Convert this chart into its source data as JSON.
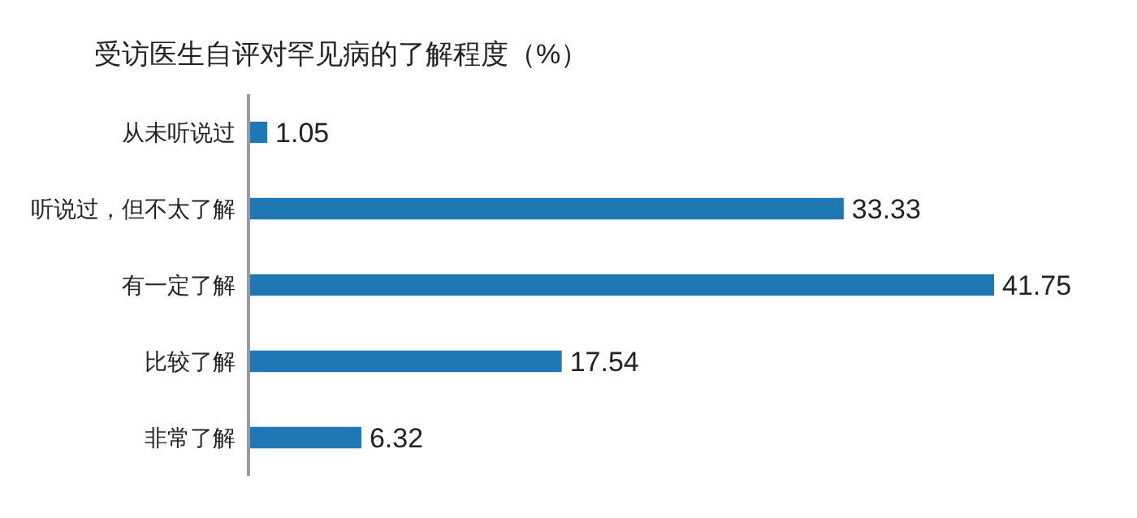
{
  "chart_data": {
    "type": "bar",
    "orientation": "horizontal",
    "title": "受访医生自评对罕见病的了解程度（%）",
    "categories": [
      "从未听说过",
      "听说过，但不太了解",
      "有一定了解",
      "比较了解",
      "非常了解"
    ],
    "values": [
      1.05,
      33.33,
      41.75,
      17.54,
      6.32
    ],
    "color": "#1f77b4",
    "data_labels": true,
    "grid": false,
    "legend": false
  }
}
